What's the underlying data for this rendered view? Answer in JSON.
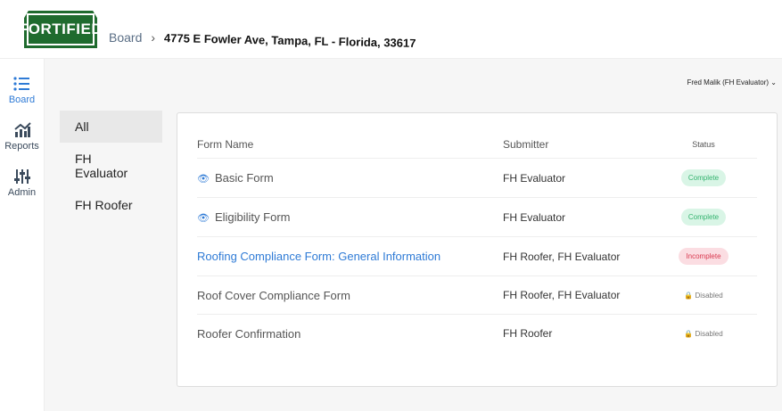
{
  "brand": {
    "logo_text": "FORTIFIED"
  },
  "breadcrumb": {
    "root": "Board",
    "current": "4775 E Fowler Ave, Tampa, FL - Florida, 33617"
  },
  "sidebar": {
    "items": [
      {
        "label": "Board",
        "icon": "list-icon",
        "active": true
      },
      {
        "label": "Reports",
        "icon": "chart-icon"
      },
      {
        "label": "Admin",
        "icon": "sliders-icon"
      }
    ]
  },
  "user": {
    "label": "Fred Malik (FH Evaluator) ⌄"
  },
  "filters": [
    "All",
    "FH Evaluator",
    "FH Roofer"
  ],
  "table": {
    "headers": [
      "Form Name",
      "Submitter",
      "Status"
    ],
    "rows": [
      {
        "name": "Basic Form",
        "submitter": "FH Evaluator",
        "status": "Complete"
      },
      {
        "name": "Eligibility Form",
        "submitter": "FH Evaluator",
        "status": "Complete"
      },
      {
        "name": "Roofing Compliance Form: General Information",
        "submitter": "FH Roofer, FH Evaluator",
        "status": "Incomplete"
      },
      {
        "name": "Roof Cover Compliance Form",
        "submitter": "FH Roofer, FH Evaluator",
        "status": "Disabled"
      },
      {
        "name": "Roofer Confirmation",
        "submitter": "FH Roofer",
        "status": "Disabled"
      }
    ]
  },
  "colors": {
    "brand": "#1f6b2e",
    "accent": "#2f7bd6",
    "complete": "#34b36f",
    "incomplete": "#d9394f"
  }
}
